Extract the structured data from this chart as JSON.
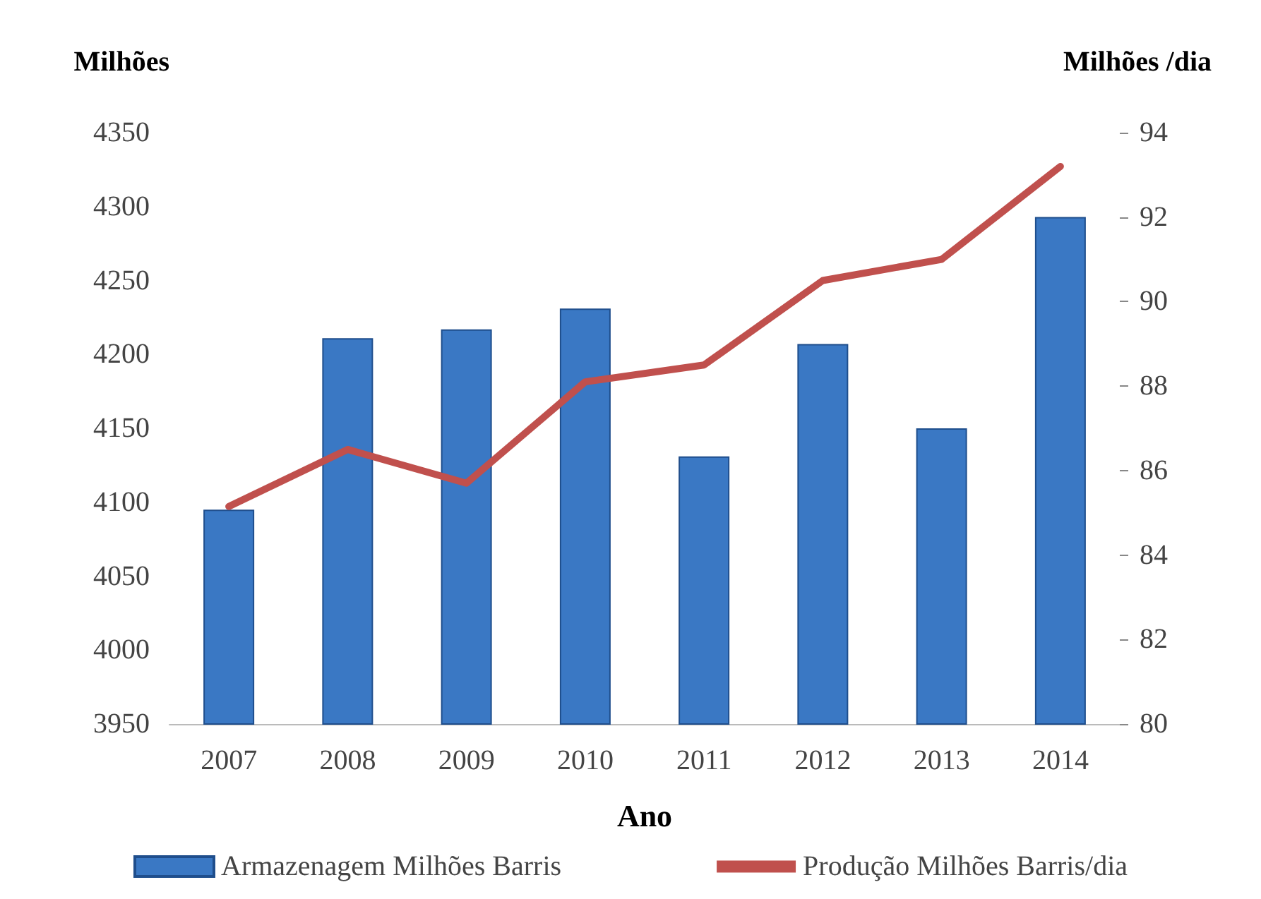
{
  "chart_data": {
    "type": "bar",
    "categories": [
      "2007",
      "2008",
      "2009",
      "2010",
      "2011",
      "2012",
      "2013",
      "2014"
    ],
    "xlabel": "Ano",
    "ylabel": "Milhões",
    "y2label": "Milhões /dia",
    "ylim": [
      3950,
      4350
    ],
    "yticks": [
      3950,
      4000,
      4050,
      4100,
      4150,
      4200,
      4250,
      4300,
      4350
    ],
    "y2lim": [
      80,
      94
    ],
    "y2ticks": [
      80,
      82,
      84,
      86,
      88,
      90,
      92,
      94
    ],
    "legend": "bottom",
    "series": [
      {
        "name": "Armazenagem Milhões Barris",
        "color": "#3a78c4",
        "values": [
          4095,
          4211,
          4217,
          4231,
          4131,
          4207,
          4150,
          4293
        ]
      },
      {
        "name": "Produção Milhões Barris/dia",
        "type": "line",
        "axis": "y2",
        "color": "#c0504d",
        "values": [
          85.15,
          86.5,
          85.7,
          88.1,
          88.5,
          90.5,
          91.0,
          93.2
        ]
      }
    ]
  }
}
